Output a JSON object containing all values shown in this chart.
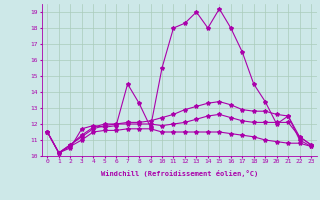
{
  "xlabel": "Windchill (Refroidissement éolien,°C)",
  "xlim": [
    -0.5,
    23.5
  ],
  "ylim": [
    10.0,
    19.5
  ],
  "yticks": [
    10,
    11,
    12,
    13,
    14,
    15,
    16,
    17,
    18,
    19
  ],
  "xticks": [
    0,
    1,
    2,
    3,
    4,
    5,
    6,
    7,
    8,
    9,
    10,
    11,
    12,
    13,
    14,
    15,
    16,
    17,
    18,
    19,
    20,
    21,
    22,
    23
  ],
  "background_color": "#cde8e8",
  "grid_color": "#aaccbb",
  "line_color": "#aa00aa",
  "line_width": 0.8,
  "marker": "*",
  "marker_size": 3,
  "series": [
    [
      11.5,
      10.2,
      10.5,
      11.7,
      11.9,
      11.8,
      11.9,
      14.5,
      13.3,
      11.8,
      15.5,
      18.0,
      18.3,
      19.0,
      18.0,
      19.2,
      18.0,
      16.5,
      14.5,
      13.4,
      12.0,
      12.5,
      11.0,
      10.6
    ],
    [
      11.5,
      10.2,
      10.6,
      11.0,
      11.5,
      11.6,
      11.6,
      11.7,
      11.7,
      11.7,
      11.5,
      11.5,
      11.5,
      11.5,
      11.5,
      11.5,
      11.4,
      11.3,
      11.2,
      11.0,
      10.9,
      10.8,
      10.8,
      10.6
    ],
    [
      11.5,
      10.2,
      10.7,
      11.2,
      11.7,
      11.9,
      12.0,
      12.0,
      12.0,
      12.0,
      11.9,
      12.0,
      12.1,
      12.3,
      12.5,
      12.6,
      12.4,
      12.2,
      12.1,
      12.1,
      12.1,
      12.1,
      11.2,
      10.7
    ],
    [
      11.5,
      10.2,
      10.7,
      11.3,
      11.8,
      12.0,
      12.0,
      12.1,
      12.1,
      12.2,
      12.4,
      12.6,
      12.9,
      13.1,
      13.3,
      13.4,
      13.2,
      12.9,
      12.8,
      12.8,
      12.6,
      12.5,
      11.2,
      10.7
    ]
  ]
}
